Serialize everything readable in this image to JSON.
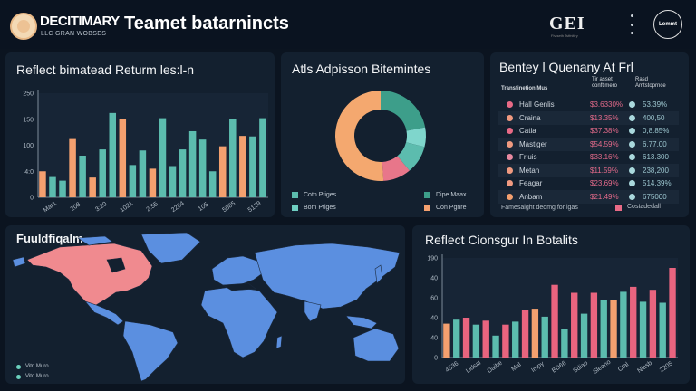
{
  "header": {
    "brand_name": "DECITIMARY",
    "brand_subtitle": "LLC GRAN WOBSES",
    "page_title": "Teamet batarnincts",
    "partner_logo": "GEI",
    "partner_logo_subtitle": "Fivtseth Tstfnitiry",
    "avatar_text": "Lommt",
    "icons": {
      "brand": "brand-logo-icon",
      "menu": "kebab-menu-icon",
      "avatar": "avatar-icon"
    }
  },
  "colors": {
    "background": "#0b1420",
    "panel": "#13202f",
    "teal": "#5cbcae",
    "orange": "#f4a06f",
    "pink": "#e8647f",
    "blue": "#5b8fe0",
    "map_highlight": "#f08a8f"
  },
  "panels": {
    "returns": {
      "title": "Reflect bimatead Returm les:l-n"
    },
    "donut": {
      "title": "Atls Adpisson Bitemintes",
      "legend": [
        {
          "label": "Cotn Ptiges",
          "color": "#5cbcae"
        },
        {
          "label": "Bom Ptiges",
          "color": "#6fcfc2"
        },
        {
          "label": "Dipe Maax",
          "color": "#3d9e8a"
        },
        {
          "label": "Con Pgnre",
          "color": "#f4a06f"
        }
      ]
    },
    "table": {
      "title": "Bentey l Quenany At Frl",
      "col_headers": [
        "Transfinetion Mus",
        "Tir asset conftimero",
        "Rasd Amtstoprnce"
      ],
      "rows": [
        {
          "name": "Hall Genlis",
          "value1": "$3.6330%",
          "value2": "53.39%",
          "dot": "#e86a86"
        },
        {
          "name": "Craina",
          "value1": "$13.35%",
          "value2": "400,50",
          "dot": "#f09a80"
        },
        {
          "name": "Catia",
          "value1": "$37.38%",
          "value2": "0,8.85%",
          "dot": "#e86a86"
        },
        {
          "name": "Mastiger",
          "value1": "$54.59%",
          "value2": "6.77.00",
          "dot": "#f09a80"
        },
        {
          "name": "Frluis",
          "value1": "$33.16%",
          "value2": "613.300",
          "dot": "#e889a0"
        },
        {
          "name": "Metan",
          "value1": "$11.59%",
          "value2": "238,200",
          "dot": "#f09a80"
        },
        {
          "name": "Feagar",
          "value1": "$23.69%",
          "value2": "514.39%",
          "dot": "#f09a80"
        },
        {
          "name": "Anbam",
          "value1": "$21.49%",
          "value2": "675000",
          "dot": "#f4a06f"
        }
      ],
      "footer_text": "Famesaight deomg for lgas",
      "footer_legend": "Costadedall"
    },
    "map": {
      "title": "Fuuldfiqalm",
      "legend": [
        {
          "label": "Vitn Muro"
        },
        {
          "label": "Vito Muro"
        }
      ]
    },
    "bottom_chart": {
      "title": "Reflect Cionsgur In Botalits"
    }
  },
  "chart_data": [
    {
      "type": "bar",
      "title": "Reflect bimatead Returm les:l-n",
      "xlabel": "",
      "ylabel": "",
      "yticks": [
        "0",
        "4:0",
        "100",
        "150",
        "250"
      ],
      "ylim": [
        0,
        200
      ],
      "categories": [
        "Mar1",
        "208",
        "3:20",
        "1021",
        "2:55",
        "2284",
        "105",
        "5085",
        "5129"
      ],
      "series": [
        {
          "name": "orange",
          "color": "#f4a06f",
          "values": [
            50,
            0,
            0,
            112,
            0,
            0,
            38,
            0,
            0,
            0,
            150,
            0,
            0,
            55,
            0,
            0,
            0,
            0,
            0,
            0,
            98,
            0,
            118,
            0,
            0
          ]
        },
        {
          "name": "teal",
          "color": "#5cbcae",
          "values": [
            0,
            39,
            32,
            0,
            0,
            80,
            0,
            92,
            162,
            0,
            0,
            62,
            90,
            0,
            152,
            60,
            92,
            127,
            111,
            50,
            0,
            151,
            0,
            117,
            152
          ]
        }
      ],
      "bars": [
        {
          "v": 50,
          "c": "orange"
        },
        {
          "v": 39,
          "c": "teal"
        },
        {
          "v": 32,
          "c": "teal"
        },
        {
          "v": 112,
          "c": "orange"
        },
        {
          "v": 80,
          "c": "teal"
        },
        {
          "v": 38,
          "c": "orange"
        },
        {
          "v": 92,
          "c": "teal"
        },
        {
          "v": 162,
          "c": "teal"
        },
        {
          "v": 150,
          "c": "orange"
        },
        {
          "v": 62,
          "c": "teal"
        },
        {
          "v": 90,
          "c": "teal"
        },
        {
          "v": 55,
          "c": "orange"
        },
        {
          "v": 152,
          "c": "teal"
        },
        {
          "v": 60,
          "c": "teal"
        },
        {
          "v": 92,
          "c": "teal"
        },
        {
          "v": 127,
          "c": "teal"
        },
        {
          "v": 111,
          "c": "teal"
        },
        {
          "v": 50,
          "c": "teal"
        },
        {
          "v": 98,
          "c": "orange"
        },
        {
          "v": 151,
          "c": "teal"
        },
        {
          "v": 118,
          "c": "orange"
        },
        {
          "v": 117,
          "c": "teal"
        },
        {
          "v": 152,
          "c": "teal"
        }
      ],
      "grid": false
    },
    {
      "type": "pie",
      "title": "Atls Adpisson Bitemintes",
      "donut": true,
      "slices": [
        {
          "label": "Dipe Maax",
          "value": 22,
          "color": "#3d9e8a"
        },
        {
          "label": "Bom Ptiges",
          "value": 7,
          "color": "#7fd6cc"
        },
        {
          "label": "Cotn Ptiges",
          "value": 10,
          "color": "#5cbcae"
        },
        {
          "label": "Pink",
          "value": 10,
          "color": "#e8768a"
        },
        {
          "label": "Con Pgnre",
          "value": 51,
          "color": "#f4a86f"
        }
      ]
    },
    {
      "type": "bar",
      "title": "Reflect Cionsgur In Botalits",
      "yticks": [
        "0",
        "40",
        "40",
        "60",
        "40",
        "190"
      ],
      "ylim": [
        0,
        100
      ],
      "categories": [
        "4536",
        "Lidsal",
        "Daibe",
        "Mal",
        "Impy",
        "BD66",
        "Sdiao",
        "Sleano",
        "Ctal",
        "Nlasb",
        "2205"
      ],
      "bars": [
        {
          "v": 34,
          "c": "orange"
        },
        {
          "v": 38,
          "c": "teal"
        },
        {
          "v": 40,
          "c": "pink"
        },
        {
          "v": 33,
          "c": "teal"
        },
        {
          "v": 37,
          "c": "pink"
        },
        {
          "v": 22,
          "c": "teal"
        },
        {
          "v": 33,
          "c": "pink"
        },
        {
          "v": 36,
          "c": "teal"
        },
        {
          "v": 48,
          "c": "pink"
        },
        {
          "v": 49,
          "c": "orange"
        },
        {
          "v": 41,
          "c": "teal"
        },
        {
          "v": 73,
          "c": "pink"
        },
        {
          "v": 29,
          "c": "teal"
        },
        {
          "v": 65,
          "c": "pink"
        },
        {
          "v": 44,
          "c": "teal"
        },
        {
          "v": 65,
          "c": "pink"
        },
        {
          "v": 58,
          "c": "teal"
        },
        {
          "v": 58,
          "c": "orange"
        },
        {
          "v": 66,
          "c": "teal"
        },
        {
          "v": 71,
          "c": "pink"
        },
        {
          "v": 56,
          "c": "teal"
        },
        {
          "v": 68,
          "c": "pink"
        },
        {
          "v": 55,
          "c": "teal"
        },
        {
          "v": 90,
          "c": "pink"
        }
      ]
    }
  ]
}
